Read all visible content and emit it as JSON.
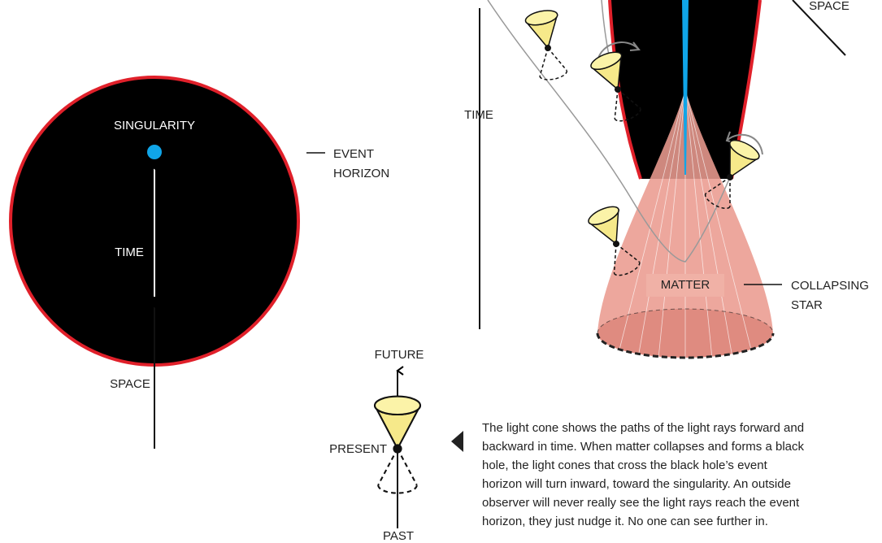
{
  "left": {
    "singularity": "SINGULARITY",
    "event_horizon": [
      "EVENT",
      "HORIZON"
    ],
    "time": "TIME",
    "space": "SPACE"
  },
  "right": {
    "time": "TIME",
    "space": "SPACE",
    "matter": "MATTER",
    "collapsing_star": [
      "COLLAPSING",
      "STAR"
    ]
  },
  "legend": {
    "future": "FUTURE",
    "present": "PRESENT",
    "past": "PAST"
  },
  "caption": [
    "The light cone shows the paths of the light rays forward and",
    "backward in time. When matter collapses and forms a black",
    "hole, the light cones that cross the black hole’s event",
    "horizon will turn inward, toward the singularity. An outside",
    "observer will never really see the light rays reach the event",
    "horizon, they just nudge it. No one can see further in."
  ]
}
